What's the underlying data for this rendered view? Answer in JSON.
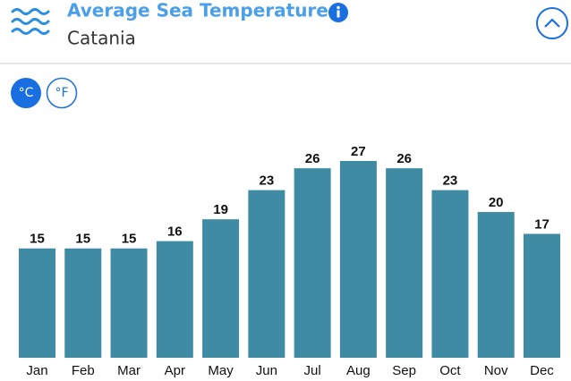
{
  "header": {
    "title": "Average Sea Temperature",
    "subtitle": "Catania"
  },
  "unit_buttons": [
    "°C",
    "°F"
  ],
  "chart_data": {
    "type": "bar",
    "categories": [
      "Jan",
      "Feb",
      "Mar",
      "Apr",
      "May",
      "Jun",
      "Jul",
      "Aug",
      "Sep",
      "Oct",
      "Nov",
      "Dec"
    ],
    "values": [
      15,
      15,
      15,
      16,
      19,
      23,
      26,
      27,
      26,
      23,
      20,
      17
    ],
    "color": "#3f8ba4"
  }
}
